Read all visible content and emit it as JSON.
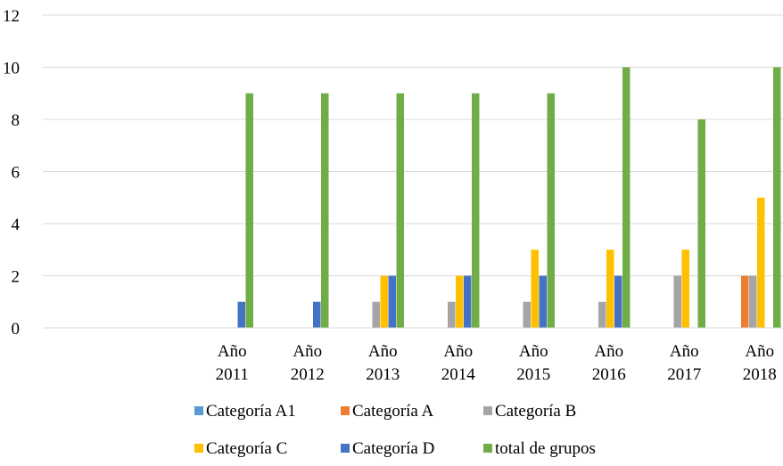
{
  "chart_data": {
    "type": "bar",
    "title": "",
    "xlabel": "",
    "ylabel": "",
    "ylim": [
      0,
      12
    ],
    "yticks": [
      0,
      2,
      4,
      6,
      8,
      10,
      12
    ],
    "grid": true,
    "legend_position": "bottom",
    "categories": [
      [
        "Año",
        "2011"
      ],
      [
        "Año",
        "2012"
      ],
      [
        "Año",
        "2013"
      ],
      [
        "Año",
        "2014"
      ],
      [
        "Año",
        "2015"
      ],
      [
        "Año",
        "2016"
      ],
      [
        "Año",
        "2017"
      ],
      [
        "Año",
        "2018"
      ]
    ],
    "series": [
      {
        "name": "Categoría A1",
        "color": "#5B9BD5",
        "values": [
          0,
          0,
          0,
          0,
          0,
          0,
          0,
          0
        ]
      },
      {
        "name": "Categoría A",
        "color": "#ED7D31",
        "values": [
          0,
          0,
          0,
          0,
          0,
          0,
          0,
          2
        ]
      },
      {
        "name": "Categoría B",
        "color": "#A5A5A5",
        "values": [
          0,
          0,
          1,
          1,
          1,
          1,
          2,
          2
        ]
      },
      {
        "name": "Categoría C",
        "color": "#FFC000",
        "values": [
          0,
          0,
          2,
          2,
          3,
          3,
          3,
          5
        ]
      },
      {
        "name": "Categoría D",
        "color": "#4472C4",
        "values": [
          1,
          1,
          2,
          2,
          2,
          2,
          0,
          0
        ]
      },
      {
        "name": "total de grupos",
        "color": "#70AD47",
        "values": [
          9,
          9,
          9,
          9,
          9,
          10,
          8,
          10
        ]
      }
    ]
  }
}
